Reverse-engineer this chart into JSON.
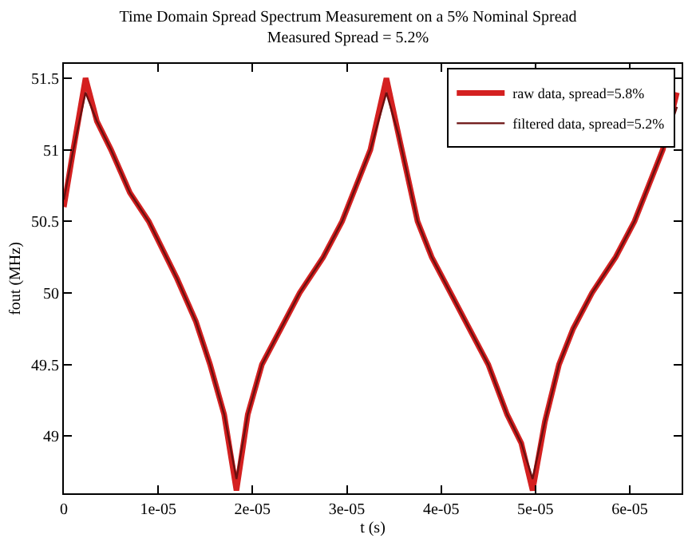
{
  "chart_data": {
    "type": "line",
    "title": "Time Domain Spread Spectrum Measurement on a 5% Nominal Spread",
    "subtitle": "Measured Spread = 5.2%",
    "xlabel": "t (s)",
    "ylabel": "fout (MHz)",
    "x": [
      0,
      1e-06,
      2.3e-06,
      3.5e-06,
      5e-06,
      7e-06,
      9e-06,
      1.2e-05,
      1.4e-05,
      1.55e-05,
      1.7e-05,
      1.83e-05,
      1.95e-05,
      2.1e-05,
      2.3e-05,
      2.5e-05,
      2.75e-05,
      2.95e-05,
      3.1e-05,
      3.25e-05,
      3.42e-05,
      3.55e-05,
      3.75e-05,
      3.9e-05,
      4.1e-05,
      4.3e-05,
      4.5e-05,
      4.7e-05,
      4.85e-05,
      4.97e-05,
      5.1e-05,
      5.25e-05,
      5.4e-05,
      5.6e-05,
      5.85e-05,
      6.05e-05,
      6.2e-05,
      6.35e-05,
      6.5e-05
    ],
    "series": [
      {
        "name": "raw data, spread=5.8%",
        "color": "#d42020",
        "values": [
          50.6,
          51.0,
          51.5,
          51.2,
          51.0,
          50.7,
          50.5,
          50.1,
          49.8,
          49.5,
          49.15,
          48.62,
          49.15,
          49.5,
          49.75,
          50.0,
          50.25,
          50.5,
          50.75,
          51.0,
          51.5,
          51.1,
          50.5,
          50.25,
          50.0,
          49.75,
          49.5,
          49.15,
          48.95,
          48.62,
          49.1,
          49.5,
          49.75,
          50.0,
          50.25,
          50.5,
          50.75,
          51.0,
          51.4
        ]
      },
      {
        "name": "filtered data, spread=5.2%",
        "color": "#6a1010",
        "values": [
          50.65,
          51.0,
          51.4,
          51.2,
          51.0,
          50.7,
          50.5,
          50.1,
          49.8,
          49.5,
          49.15,
          48.7,
          49.15,
          49.5,
          49.75,
          50.0,
          50.25,
          50.5,
          50.75,
          51.0,
          51.4,
          51.1,
          50.5,
          50.25,
          50.0,
          49.75,
          49.5,
          49.15,
          48.95,
          48.7,
          49.1,
          49.5,
          49.75,
          50.0,
          50.25,
          50.5,
          50.75,
          51.0,
          51.3
        ]
      }
    ],
    "xlim": [
      0,
      6.55e-05
    ],
    "ylim": [
      48.6,
      51.6
    ],
    "xticks": [
      0,
      {
        "value": 1e-05,
        "label": "1e-05"
      },
      {
        "value": 2e-05,
        "label": "2e-05"
      },
      {
        "value": 3e-05,
        "label": "3e-05"
      },
      {
        "value": 4e-05,
        "label": "4e-05"
      },
      {
        "value": 5e-05,
        "label": "5e-05"
      },
      {
        "value": 6e-05,
        "label": "6e-05"
      }
    ],
    "yticks": [
      49,
      49.5,
      50,
      50.5,
      51,
      51.5
    ],
    "legend": "top right",
    "marker": "none",
    "line_style": "solid"
  }
}
